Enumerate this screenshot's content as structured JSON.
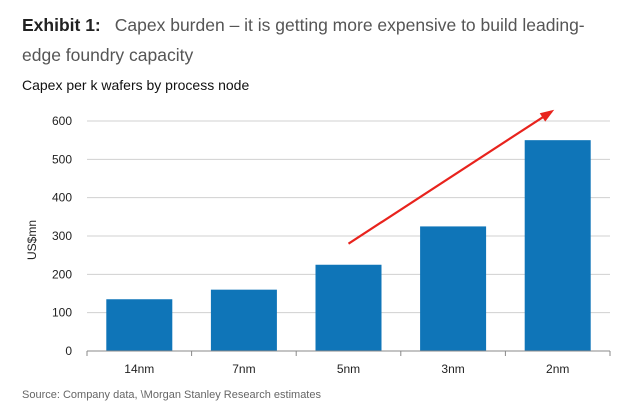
{
  "exhibit": {
    "label": "Exhibit 1:",
    "title": "Capex burden – it is getting more expensive to build leading-edge foundry capacity"
  },
  "source": "Source: Company data, \\Morgan Stanley Research estimates",
  "colors": {
    "bar": "#0f75b8",
    "grid": "#d0d0d0",
    "arrow": "#e8231d",
    "axis": "#888888"
  },
  "chart_data": {
    "type": "bar",
    "title": "Capex per k wafers by process node",
    "xlabel": "",
    "ylabel": "US$mn",
    "categories": [
      "14nm",
      "7nm",
      "5nm",
      "3nm",
      "2nm"
    ],
    "values": [
      135,
      160,
      225,
      325,
      550
    ],
    "ylim": [
      0,
      600
    ],
    "yticks": [
      0,
      100,
      200,
      300,
      400,
      500,
      600
    ],
    "grid": true,
    "annotations": [
      {
        "type": "arrow",
        "from": {
          "category": "5nm",
          "y": 280
        },
        "to": {
          "category": "2nm",
          "y": 625
        }
      }
    ]
  }
}
